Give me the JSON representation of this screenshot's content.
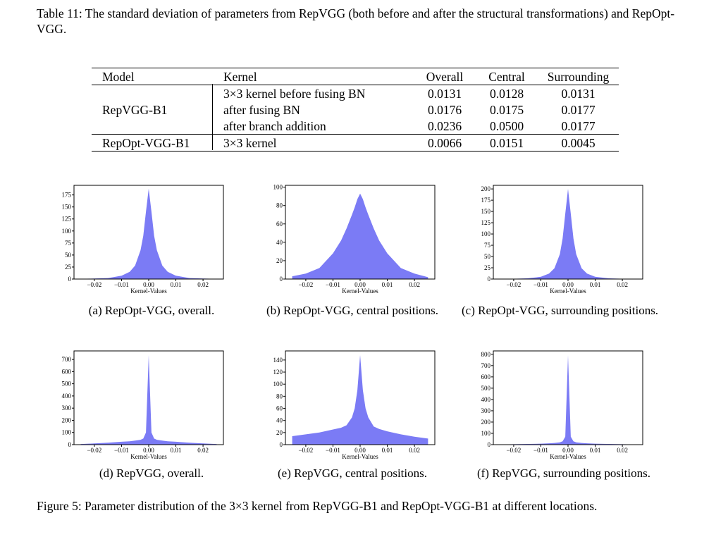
{
  "table_caption": "Table 11: The standard deviation of parameters from RepVGG (both before and after the structural transformations) and RepOpt-VGG.",
  "table": {
    "headers": [
      "Model",
      "Kernel",
      "Overall",
      "Central",
      "Surrounding"
    ],
    "groups": [
      {
        "model": "RepVGG-B1",
        "rows": [
          {
            "kernel": "3×3 kernel before fusing BN",
            "overall": "0.0131",
            "central": "0.0128",
            "surrounding": "0.0131"
          },
          {
            "kernel": "after fusing BN",
            "overall": "0.0176",
            "central": "0.0175",
            "surrounding": "0.0177"
          },
          {
            "kernel": "after branch addition",
            "overall": "0.0236",
            "central": "0.0500",
            "surrounding": "0.0177"
          }
        ]
      },
      {
        "model": "RepOpt-VGG-B1",
        "rows": [
          {
            "kernel": "3×3 kernel",
            "overall": "0.0066",
            "central": "0.0151",
            "surrounding": "0.0045"
          }
        ]
      }
    ]
  },
  "figure_caption": "Figure 5: Parameter distribution of the 3×3 kernel from RepVGG-B1 and RepOpt-VGG-B1 at different locations.",
  "chart_data": [
    {
      "type": "area",
      "caption": "(a) RepOpt-VGG, overall.",
      "xlabel": "Kernel-Values",
      "xlim": [
        -0.0275,
        0.0275
      ],
      "xticks": [
        "−0.02",
        "−0.01",
        "0.00",
        "0.01",
        "0.02"
      ],
      "ylim": [
        0,
        195
      ],
      "yticks": [
        0,
        25,
        50,
        75,
        100,
        125,
        150,
        175
      ],
      "color": "#7b7bf5",
      "x": [
        -0.025,
        -0.02,
        -0.015,
        -0.01,
        -0.007,
        -0.005,
        -0.003,
        -0.002,
        -0.001,
        0,
        0.001,
        0.002,
        0.003,
        0.005,
        0.007,
        0.01,
        0.015,
        0.02,
        0.025
      ],
      "y": [
        0.5,
        1,
        2,
        7,
        15,
        28,
        60,
        90,
        140,
        188,
        140,
        90,
        60,
        28,
        15,
        7,
        2,
        1,
        0.5
      ]
    },
    {
      "type": "area",
      "caption": "(b) RepOpt-VGG, central positions.",
      "xlabel": "Kernel-Values",
      "xlim": [
        -0.0275,
        0.0275
      ],
      "xticks": [
        "−0.02",
        "−0.01",
        "0.00",
        "0.01",
        "0.02"
      ],
      "ylim": [
        0,
        102
      ],
      "yticks": [
        0,
        20,
        40,
        60,
        80,
        100
      ],
      "color": "#7b7bf5",
      "x": [
        -0.025,
        -0.02,
        -0.015,
        -0.01,
        -0.007,
        -0.005,
        -0.003,
        -0.002,
        -0.001,
        0,
        0.001,
        0.002,
        0.003,
        0.005,
        0.007,
        0.01,
        0.015,
        0.02,
        0.025
      ],
      "y": [
        3,
        6,
        12,
        28,
        42,
        55,
        70,
        78,
        87,
        93,
        87,
        78,
        70,
        55,
        42,
        28,
        12,
        6,
        2
      ]
    },
    {
      "type": "area",
      "caption": "(c) RepOpt-VGG, surrounding positions.",
      "xlabel": "Kernel-Values",
      "xlim": [
        -0.0275,
        0.0275
      ],
      "xticks": [
        "−0.02",
        "−0.01",
        "0.00",
        "0.01",
        "0.02"
      ],
      "ylim": [
        0,
        208
      ],
      "yticks": [
        0,
        25,
        50,
        75,
        100,
        125,
        150,
        175,
        200
      ],
      "color": "#7b7bf5",
      "x": [
        -0.025,
        -0.02,
        -0.015,
        -0.01,
        -0.007,
        -0.005,
        -0.003,
        -0.002,
        -0.001,
        0,
        0.001,
        0.002,
        0.003,
        0.005,
        0.007,
        0.01,
        0.015,
        0.02,
        0.025
      ],
      "y": [
        0.3,
        0.7,
        1.5,
        5,
        12,
        24,
        55,
        90,
        145,
        200,
        145,
        90,
        55,
        24,
        12,
        5,
        1.5,
        0.7,
        0.3
      ]
    },
    {
      "type": "area",
      "caption": "(d) RepVGG, overall.",
      "xlabel": "Kernel-Values",
      "xlim": [
        -0.0275,
        0.0275
      ],
      "xticks": [
        "−0.02",
        "−0.01",
        "0.00",
        "0.01",
        "0.02"
      ],
      "ylim": [
        0,
        770
      ],
      "yticks": [
        0,
        100,
        200,
        300,
        400,
        500,
        600,
        700
      ],
      "color": "#7b7bf5",
      "x": [
        -0.025,
        -0.02,
        -0.015,
        -0.01,
        -0.007,
        -0.005,
        -0.003,
        -0.002,
        -0.001,
        0,
        0.001,
        0.002,
        0.003,
        0.005,
        0.007,
        0.01,
        0.015,
        0.02,
        0.025
      ],
      "y": [
        5,
        10,
        16,
        24,
        28,
        33,
        40,
        50,
        100,
        735,
        100,
        50,
        40,
        33,
        28,
        24,
        16,
        10,
        5
      ]
    },
    {
      "type": "area",
      "caption": "(e) RepVGG, central positions.",
      "xlabel": "Kernel-Values",
      "xlim": [
        -0.0275,
        0.0275
      ],
      "xticks": [
        "−0.02",
        "−0.01",
        "0.00",
        "0.01",
        "0.02"
      ],
      "ylim": [
        0,
        155
      ],
      "yticks": [
        0,
        20,
        40,
        60,
        80,
        100,
        120,
        140
      ],
      "color": "#7b7bf5",
      "x": [
        -0.025,
        -0.02,
        -0.015,
        -0.01,
        -0.007,
        -0.005,
        -0.003,
        -0.002,
        -0.001,
        0,
        0.001,
        0.002,
        0.003,
        0.005,
        0.007,
        0.01,
        0.015,
        0.02,
        0.025
      ],
      "y": [
        14,
        17,
        20,
        25,
        28,
        32,
        45,
        60,
        90,
        148,
        90,
        60,
        45,
        30,
        26,
        22,
        17,
        13,
        10
      ]
    },
    {
      "type": "area",
      "caption": "(f) RepVGG, surrounding positions.",
      "xlabel": "Kernel-Values",
      "xlim": [
        -0.0275,
        0.0275
      ],
      "xticks": [
        "−0.02",
        "−0.01",
        "0.00",
        "0.01",
        "0.02"
      ],
      "ylim": [
        0,
        830
      ],
      "yticks": [
        0,
        100,
        200,
        300,
        400,
        500,
        600,
        700,
        800
      ],
      "color": "#7b7bf5",
      "x": [
        -0.025,
        -0.02,
        -0.015,
        -0.01,
        -0.007,
        -0.005,
        -0.003,
        -0.002,
        -0.001,
        0,
        0.001,
        0.002,
        0.003,
        0.005,
        0.007,
        0.01,
        0.015,
        0.02,
        0.025
      ],
      "y": [
        2,
        4,
        6,
        9,
        12,
        15,
        20,
        30,
        70,
        790,
        70,
        30,
        20,
        15,
        12,
        9,
        6,
        4,
        2
      ]
    }
  ]
}
